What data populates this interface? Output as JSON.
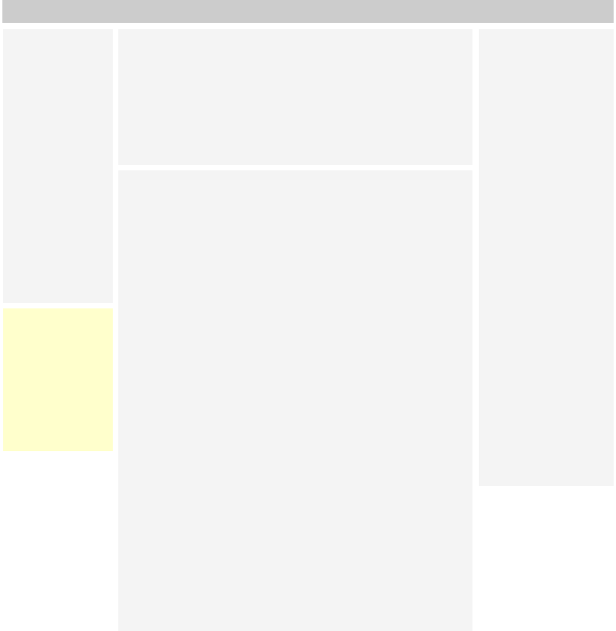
{
  "colors": {
    "page_background": "#ffffff",
    "top_bar": "#cccccc",
    "panel": "#f4f4f4",
    "note_panel": "#ffffcc"
  },
  "top_bar": {},
  "left_panel": {},
  "left_note": {},
  "center_top_panel": {},
  "center_main_panel": {},
  "right_panel": {}
}
